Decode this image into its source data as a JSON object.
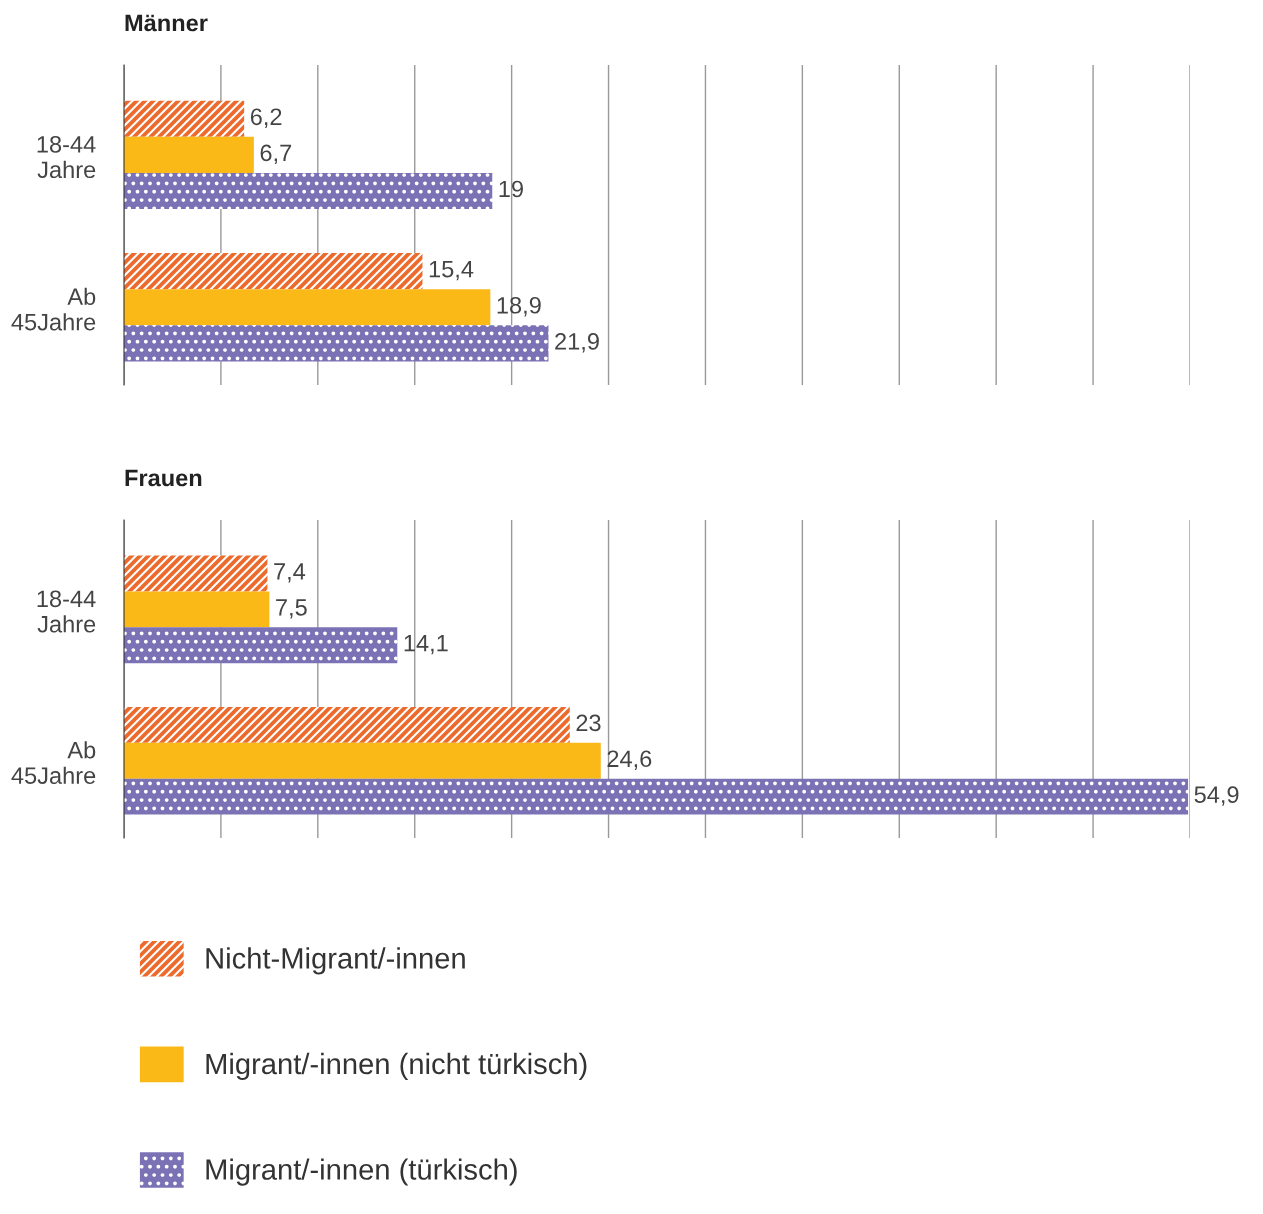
{
  "chart_data": [
    {
      "type": "bar",
      "orientation": "horizontal",
      "title": "Männer",
      "categories": [
        "18-44\nJahre",
        "Ab\n45Jahre"
      ],
      "series": [
        {
          "name": "Nicht-Migrant/-innen",
          "color": "#ec6a2c",
          "values": [
            6.2,
            15.4
          ],
          "value_labels": [
            "6,2",
            "15,4"
          ]
        },
        {
          "name": "Migrant/-innen (nicht türkisch)",
          "color": "#fbb917",
          "values": [
            6.7,
            18.9
          ],
          "value_labels": [
            "6,7",
            "18,9"
          ]
        },
        {
          "name": "Migrant/-innen (türkisch)",
          "color": "#7b72b6",
          "values": [
            19,
            21.9
          ],
          "value_labels": [
            "19",
            "21,9"
          ]
        }
      ],
      "xlim": [
        0,
        55
      ],
      "xticks": [
        {
          "value": 0,
          "label": null
        },
        {
          "value": 5,
          "label": null
        },
        {
          "value": 10,
          "label": null
        },
        {
          "value": 15,
          "label": null
        },
        {
          "value": 20,
          "label": null
        },
        {
          "value": 25,
          "label": null
        },
        {
          "value": 30,
          "label": null
        },
        {
          "value": 35,
          "label": null
        },
        {
          "value": 40,
          "label": null
        },
        {
          "value": 45,
          "label": null
        },
        {
          "value": 50,
          "label": null
        },
        {
          "value": 55,
          "label": null
        }
      ],
      "grid": "x",
      "tick_labels": "y",
      "legend": "bottom"
    },
    {
      "type": "bar",
      "orientation": "horizontal",
      "title": "Frauen",
      "categories": [
        "18-44\nJahre",
        "Ab\n45Jahre"
      ],
      "series": [
        {
          "color": "#ec6a2c",
          "values": [
            7.4,
            23
          ],
          "value_labels": [
            "7,4",
            "23"
          ]
        },
        {
          "color": "#fbb917",
          "values": [
            7.5,
            24.6
          ],
          "value_labels": [
            "7,5",
            "24,6"
          ]
        },
        {
          "color": "#7b72b6",
          "values": [
            14.1,
            54.9
          ],
          "value_labels": [
            "14,1",
            "54,9"
          ]
        }
      ],
      "xlim": [
        0,
        55
      ],
      "xticks": [
        {
          "value": 0,
          "label": null
        },
        {
          "value": 5,
          "label": null
        },
        {
          "value": 10,
          "label": null
        },
        {
          "value": 15,
          "label": null
        },
        {
          "value": 20,
          "label": null
        },
        {
          "value": 25,
          "label": null
        },
        {
          "value": 30,
          "label": null
        },
        {
          "value": 35,
          "label": null
        },
        {
          "value": 40,
          "label": null
        },
        {
          "value": 45,
          "label": null
        },
        {
          "value": 50,
          "label": null
        },
        {
          "value": 55,
          "label": null
        }
      ],
      "grid": "x",
      "tick_labels": "y"
    }
  ]
}
